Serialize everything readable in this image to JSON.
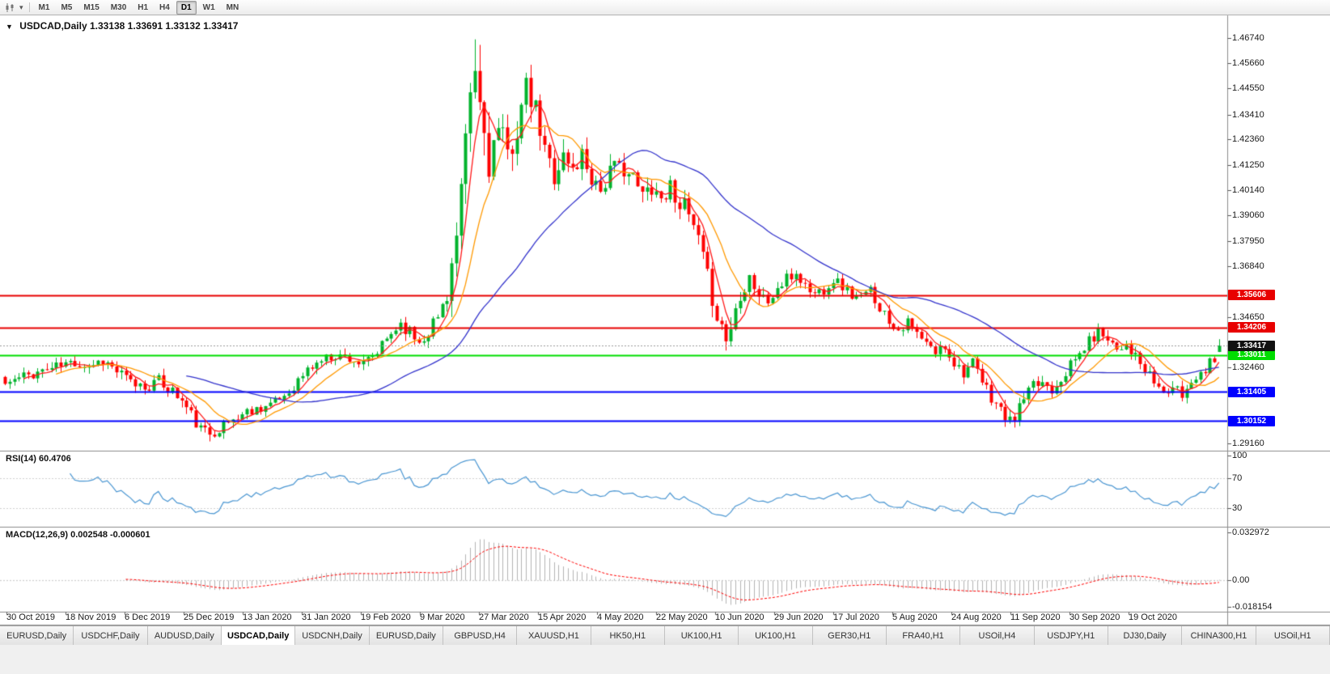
{
  "icons": {
    "symbol_caret": "▼",
    "toolbar_caret": "▾"
  },
  "toolbar": {
    "timeframes": [
      {
        "label": "M1",
        "active": false
      },
      {
        "label": "M5",
        "active": false
      },
      {
        "label": "M15",
        "active": false
      },
      {
        "label": "M30",
        "active": false
      },
      {
        "label": "H1",
        "active": false
      },
      {
        "label": "H4",
        "active": false
      },
      {
        "label": "D1",
        "active": true
      },
      {
        "label": "W1",
        "active": false
      },
      {
        "label": "MN",
        "active": false
      }
    ]
  },
  "chart": {
    "symbol": "USDCAD,Daily",
    "ohlc_text": "1.33138 1.33691 1.33132 1.33417",
    "price_ticks": [
      "1.46740",
      "1.45660",
      "1.44550",
      "1.43410",
      "1.42360",
      "1.41250",
      "1.40140",
      "1.39060",
      "1.37950",
      "1.36840",
      "1.34650",
      "1.32460",
      "1.29160"
    ],
    "hlines": [
      {
        "value": 1.35606,
        "label": "1.35606",
        "color": "#e80000",
        "width": 2
      },
      {
        "value": 1.34206,
        "label": "1.34206",
        "color": "#e80000",
        "width": 2
      },
      {
        "value": 1.33011,
        "label": "1.33011",
        "color": "#00dd00",
        "width": 2
      },
      {
        "value": 1.31405,
        "label": "1.31405",
        "color": "#0000ff",
        "width": 2
      },
      {
        "value": 1.30152,
        "label": "1.30152",
        "color": "#0000ff",
        "width": 2
      }
    ],
    "current_price": {
      "value": 1.33417,
      "label": "1.33417"
    }
  },
  "rsi_panel": {
    "label": "RSI(14) 60.4706",
    "ticks": [
      {
        "value": 100,
        "label": "100"
      },
      {
        "value": 70,
        "label": "70"
      },
      {
        "value": 30,
        "label": "30"
      }
    ],
    "levels": [
      70,
      30
    ]
  },
  "macd_panel": {
    "label": "MACD(12,26,9) 0.002548 -0.000601",
    "ticks": [
      {
        "value": 0.032972,
        "label": "0.032972"
      },
      {
        "value": 0,
        "label": "0.00"
      },
      {
        "value": -0.018154,
        "label": "-0.018154"
      }
    ]
  },
  "date_axis": [
    "30 Oct 2019",
    "18 Nov 2019",
    "6 Dec 2019",
    "25 Dec 2019",
    "13 Jan 2020",
    "31 Jan 2020",
    "19 Feb 2020",
    "9 Mar 2020",
    "27 Mar 2020",
    "15 Apr 2020",
    "4 May 2020",
    "22 May 2020",
    "10 Jun 2020",
    "29 Jun 2020",
    "17 Jul 2020",
    "5 Aug 2020",
    "24 Aug 2020",
    "11 Sep 2020",
    "30 Sep 2020",
    "19 Oct 2020"
  ],
  "tabs": [
    {
      "label": "EURUSD,Daily",
      "active": false
    },
    {
      "label": "USDCHF,Daily",
      "active": false
    },
    {
      "label": "AUDUSD,Daily",
      "active": false
    },
    {
      "label": "USDCAD,Daily",
      "active": true
    },
    {
      "label": "USDCNH,Daily",
      "active": false
    },
    {
      "label": "EURUSD,Daily",
      "active": false
    },
    {
      "label": "GBPUSD,H4",
      "active": false
    },
    {
      "label": "XAUUSD,H1",
      "active": false
    },
    {
      "label": "HK50,H1",
      "active": false
    },
    {
      "label": "UK100,H1",
      "active": false
    },
    {
      "label": "UK100,H1",
      "active": false
    },
    {
      "label": "GER30,H1",
      "active": false
    },
    {
      "label": "FRA40,H1",
      "active": false
    },
    {
      "label": "USOil,H4",
      "active": false
    },
    {
      "label": "USDJPY,H1",
      "active": false
    },
    {
      "label": "DJ30,Daily",
      "active": false
    },
    {
      "label": "CHINA300,H1",
      "active": false
    },
    {
      "label": "USOil,H1",
      "active": false
    }
  ],
  "colors": {
    "up": "#00b32c",
    "down": "#fe0000",
    "rsi": "#4a96d2",
    "macd_hist": "#b4b4b4",
    "macd_signal": "#ff0000",
    "badge_black": "#111111"
  },
  "chart_data": {
    "type": "candlestick",
    "symbol": "USDCAD",
    "timeframe": "Daily",
    "title": "USDCAD,Daily 1.33138 1.33691 1.33132 1.33417",
    "x_range_dates": [
      "30 Oct 2019",
      "19 Oct 2020"
    ],
    "price_axis": {
      "min": 1.2886,
      "max": 1.4772
    },
    "candle_count": 262,
    "seed": 11,
    "close_anchors": [
      [
        0,
        1.3175
      ],
      [
        5,
        1.3215
      ],
      [
        10,
        1.3245
      ],
      [
        15,
        1.327
      ],
      [
        18,
        1.3255
      ],
      [
        21,
        1.328
      ],
      [
        24,
        1.323
      ],
      [
        27,
        1.318
      ],
      [
        30,
        1.3165
      ],
      [
        33,
        1.3185
      ],
      [
        36,
        1.3145
      ],
      [
        38,
        1.31
      ],
      [
        40,
        1.304
      ],
      [
        42,
        1.2975
      ],
      [
        44,
        1.2962
      ],
      [
        46,
        1.2985
      ],
      [
        49,
        1.302
      ],
      [
        52,
        1.3055
      ],
      [
        55,
        1.3075
      ],
      [
        58,
        1.3095
      ],
      [
        61,
        1.314
      ],
      [
        63,
        1.319
      ],
      [
        65,
        1.3235
      ],
      [
        68,
        1.328
      ],
      [
        71,
        1.33
      ],
      [
        74,
        1.329
      ],
      [
        77,
        1.3255
      ],
      [
        80,
        1.331
      ],
      [
        83,
        1.3395
      ],
      [
        85,
        1.344
      ],
      [
        87,
        1.34
      ],
      [
        89,
        1.336
      ],
      [
        91,
        1.3415
      ],
      [
        93,
        1.346
      ],
      [
        95,
        1.358
      ],
      [
        97,
        1.38
      ],
      [
        98,
        1.398
      ],
      [
        99,
        1.418
      ],
      [
        100,
        1.442
      ],
      [
        101,
        1.451
      ],
      [
        102,
        1.438
      ],
      [
        104,
        1.415
      ],
      [
        106,
        1.426
      ],
      [
        108,
        1.416
      ],
      [
        110,
        1.429
      ],
      [
        112,
        1.444
      ],
      [
        114,
        1.435
      ],
      [
        116,
        1.418
      ],
      [
        118,
        1.409
      ],
      [
        120,
        1.416
      ],
      [
        122,
        1.41
      ],
      [
        124,
        1.417
      ],
      [
        126,
        1.408
      ],
      [
        128,
        1.402
      ],
      [
        130,
        1.409
      ],
      [
        133,
        1.412
      ],
      [
        135,
        1.406
      ],
      [
        137,
        1.399
      ],
      [
        139,
        1.404
      ],
      [
        141,
        1.398
      ],
      [
        143,
        1.403
      ],
      [
        145,
        1.397
      ],
      [
        147,
        1.39
      ],
      [
        149,
        1.379
      ],
      [
        151,
        1.363
      ],
      [
        153,
        1.348
      ],
      [
        155,
        1.337
      ],
      [
        156,
        1.342
      ],
      [
        158,
        1.358
      ],
      [
        160,
        1.365
      ],
      [
        162,
        1.356
      ],
      [
        164,
        1.353
      ],
      [
        166,
        1.3585
      ],
      [
        168,
        1.3625
      ],
      [
        170,
        1.3655
      ],
      [
        172,
        1.36
      ],
      [
        174,
        1.3565
      ],
      [
        176,
        1.359
      ],
      [
        178,
        1.363
      ],
      [
        180,
        1.36
      ],
      [
        182,
        1.356
      ],
      [
        184,
        1.3545
      ],
      [
        186,
        1.358
      ],
      [
        188,
        1.351
      ],
      [
        190,
        1.345
      ],
      [
        192,
        1.3415
      ],
      [
        194,
        1.344
      ],
      [
        196,
        1.339
      ],
      [
        198,
        1.3345
      ],
      [
        200,
        1.331
      ],
      [
        202,
        1.334
      ],
      [
        204,
        1.327
      ],
      [
        206,
        1.323
      ],
      [
        208,
        1.326
      ],
      [
        210,
        1.318
      ],
      [
        212,
        1.312
      ],
      [
        214,
        1.306
      ],
      [
        216,
        1.3005
      ],
      [
        218,
        1.307
      ],
      [
        219,
        1.311
      ],
      [
        221,
        1.316
      ],
      [
        223,
        1.3185
      ],
      [
        225,
        1.3155
      ],
      [
        227,
        1.3205
      ],
      [
        229,
        1.3255
      ],
      [
        231,
        1.3305
      ],
      [
        233,
        1.336
      ],
      [
        235,
        1.34
      ],
      [
        237,
        1.3385
      ],
      [
        239,
        1.333
      ],
      [
        241,
        1.3355
      ],
      [
        243,
        1.329
      ],
      [
        245,
        1.3225
      ],
      [
        247,
        1.3185
      ],
      [
        249,
        1.3135
      ],
      [
        251,
        1.316
      ],
      [
        253,
        1.3125
      ],
      [
        255,
        1.3185
      ],
      [
        257,
        1.324
      ],
      [
        258,
        1.3215
      ],
      [
        259,
        1.331
      ],
      [
        260,
        1.329
      ],
      [
        261,
        1.33417
      ]
    ],
    "volatility_anchors": [
      [
        0,
        0.005
      ],
      [
        40,
        0.006
      ],
      [
        60,
        0.004
      ],
      [
        88,
        0.006
      ],
      [
        94,
        0.01
      ],
      [
        98,
        0.016
      ],
      [
        102,
        0.022
      ],
      [
        106,
        0.016
      ],
      [
        112,
        0.013
      ],
      [
        120,
        0.011
      ],
      [
        135,
        0.009
      ],
      [
        150,
        0.009
      ],
      [
        158,
        0.01
      ],
      [
        165,
        0.006
      ],
      [
        185,
        0.005
      ],
      [
        200,
        0.005
      ],
      [
        215,
        0.006
      ],
      [
        230,
        0.005
      ],
      [
        261,
        0.005
      ]
    ],
    "high_overrides": [
      [
        101,
        1.4668
      ]
    ],
    "last_candle": {
      "open": 1.33138,
      "high": 1.33691,
      "low": 1.33132,
      "close": 1.33417
    },
    "moving_averages": [
      {
        "period": 5,
        "color": "#ff1a1a"
      },
      {
        "period": 12,
        "color": "#ff9900"
      },
      {
        "period": 40,
        "color": "#3333cc"
      }
    ],
    "rsi": {
      "period": 14,
      "current": 60.4706,
      "levels": [
        70,
        30
      ]
    },
    "macd": {
      "fast": 12,
      "slow": 26,
      "signal": 9,
      "current_main": 0.002548,
      "current_signal": -0.000601,
      "panel_max": 0.032972,
      "panel_min": -0.018154
    },
    "horizontal_lines": [
      1.35606,
      1.34206,
      1.33011,
      1.31405,
      1.30152
    ],
    "current_close": 1.33417
  }
}
